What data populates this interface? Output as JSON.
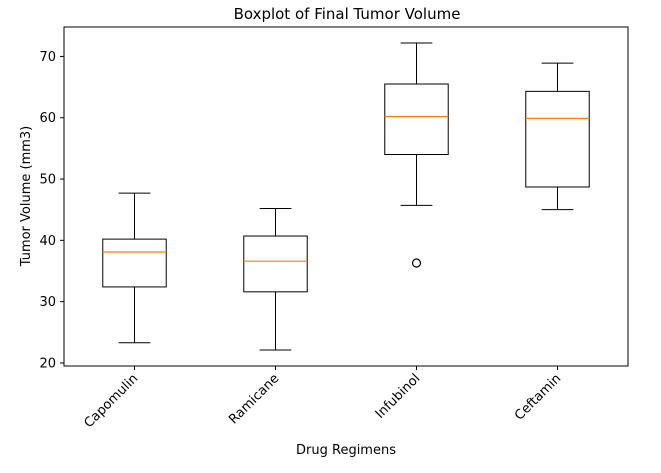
{
  "chart_data": {
    "type": "boxplot",
    "title": "Boxplot of Final Tumor Volume",
    "xlabel": "Drug Regimens",
    "ylabel": "Tumor Volume (mm3)",
    "ylim": [
      19.5,
      74.8
    ],
    "yticks": [
      20,
      30,
      40,
      50,
      60,
      70
    ],
    "ytick_labels": [
      "20",
      "30",
      "40",
      "50",
      "60",
      "70"
    ],
    "grid": false,
    "categories": [
      "Capomulin",
      "Ramicane",
      "Infubinol",
      "Ceftamin"
    ],
    "boxes": [
      {
        "category": "Capomulin",
        "whisker_low": 23.3,
        "q1": 32.4,
        "median": 38.1,
        "q3": 40.2,
        "whisker_high": 47.7,
        "outliers": []
      },
      {
        "category": "Ramicane",
        "whisker_low": 22.1,
        "q1": 31.6,
        "median": 36.6,
        "q3": 40.7,
        "whisker_high": 45.2,
        "outliers": []
      },
      {
        "category": "Infubinol",
        "whisker_low": 45.7,
        "q1": 54.0,
        "median": 60.2,
        "q3": 65.5,
        "whisker_high": 72.2,
        "outliers": [
          36.3
        ]
      },
      {
        "category": "Ceftamin",
        "whisker_low": 45.0,
        "q1": 48.7,
        "median": 59.9,
        "q3": 64.3,
        "whisker_high": 68.9,
        "outliers": []
      }
    ],
    "colors": {
      "box": "#000000",
      "median": "#ff7f0e",
      "outlier_edge": "#000000",
      "background": "#ffffff"
    }
  }
}
